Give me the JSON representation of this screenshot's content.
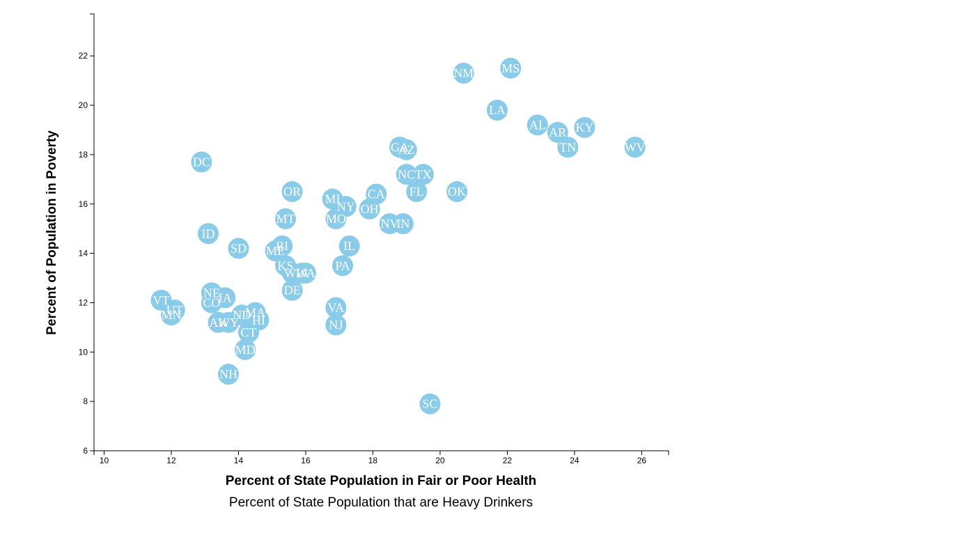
{
  "chart_data": {
    "type": "scatter",
    "x_axis": {
      "labels": [
        "Percent of State Population in Fair or Poor Health",
        "Percent of State Population that are Heavy Drinkers"
      ],
      "active": 0,
      "range": [
        9.7,
        26.8
      ],
      "ticks": [
        "10",
        "12",
        "14",
        "16",
        "18",
        "20",
        "22",
        "24",
        "26"
      ]
    },
    "y_axis": {
      "label": "Percent of Population in Poverty",
      "range": [
        6,
        23.7
      ],
      "ticks": [
        "6",
        "8",
        "10",
        "12",
        "14",
        "16",
        "18",
        "20",
        "22"
      ]
    },
    "marker_color": "#89cbe8",
    "label_color": "#ffffff",
    "points": [
      {
        "abbr": "NM",
        "x": 20.7,
        "y": 21.3
      },
      {
        "abbr": "MS",
        "x": 22.1,
        "y": 21.5
      },
      {
        "abbr": "LA",
        "x": 21.7,
        "y": 19.8
      },
      {
        "abbr": "AL",
        "x": 22.9,
        "y": 19.2
      },
      {
        "abbr": "AR",
        "x": 23.5,
        "y": 18.9
      },
      {
        "abbr": "KY",
        "x": 24.3,
        "y": 19.1
      },
      {
        "abbr": "TN",
        "x": 23.8,
        "y": 18.3
      },
      {
        "abbr": "WV",
        "x": 25.8,
        "y": 18.3
      },
      {
        "abbr": "GA",
        "x": 18.8,
        "y": 18.3
      },
      {
        "abbr": "AZ",
        "x": 19.0,
        "y": 18.2
      },
      {
        "abbr": "NC",
        "x": 19.0,
        "y": 17.2
      },
      {
        "abbr": "TX",
        "x": 19.5,
        "y": 17.2
      },
      {
        "abbr": "FL",
        "x": 19.3,
        "y": 16.5
      },
      {
        "abbr": "OK",
        "x": 20.5,
        "y": 16.5
      },
      {
        "abbr": "DC",
        "x": 12.9,
        "y": 17.7
      },
      {
        "abbr": "OR",
        "x": 15.6,
        "y": 16.5
      },
      {
        "abbr": "MI",
        "x": 16.8,
        "y": 16.2
      },
      {
        "abbr": "NY",
        "x": 17.2,
        "y": 15.9
      },
      {
        "abbr": "CA",
        "x": 18.1,
        "y": 16.4
      },
      {
        "abbr": "OH",
        "x": 17.9,
        "y": 15.8
      },
      {
        "abbr": "MT",
        "x": 15.4,
        "y": 15.4
      },
      {
        "abbr": "MO",
        "x": 16.9,
        "y": 15.4
      },
      {
        "abbr": "NV",
        "x": 18.5,
        "y": 15.2
      },
      {
        "abbr": "IN",
        "x": 18.9,
        "y": 15.2
      },
      {
        "abbr": "ID",
        "x": 13.1,
        "y": 14.8
      },
      {
        "abbr": "SD",
        "x": 14.0,
        "y": 14.2
      },
      {
        "abbr": "ME",
        "x": 15.1,
        "y": 14.1
      },
      {
        "abbr": "RI",
        "x": 15.3,
        "y": 14.3
      },
      {
        "abbr": "IL",
        "x": 17.3,
        "y": 14.3
      },
      {
        "abbr": "KS",
        "x": 15.4,
        "y": 13.5
      },
      {
        "abbr": "PA",
        "x": 17.1,
        "y": 13.5
      },
      {
        "abbr": "WI",
        "x": 15.6,
        "y": 13.2
      },
      {
        "abbr": "IA",
        "x": 15.9,
        "y": 13.2
      },
      {
        "abbr": "WA",
        "x": 16.0,
        "y": 13.2
      },
      {
        "abbr": "DE",
        "x": 15.6,
        "y": 12.5
      },
      {
        "abbr": "NE",
        "x": 13.2,
        "y": 12.4
      },
      {
        "abbr": "IA",
        "x": 13.6,
        "y": 12.2
      },
      {
        "abbr": "CO",
        "x": 13.2,
        "y": 12.0
      },
      {
        "abbr": "VT",
        "x": 11.7,
        "y": 12.1
      },
      {
        "abbr": "UT",
        "x": 12.1,
        "y": 11.7
      },
      {
        "abbr": "MN",
        "x": 12.0,
        "y": 11.5
      },
      {
        "abbr": "ND",
        "x": 14.1,
        "y": 11.5
      },
      {
        "abbr": "MA",
        "x": 14.5,
        "y": 11.6
      },
      {
        "abbr": "HI",
        "x": 14.6,
        "y": 11.3
      },
      {
        "abbr": "AK",
        "x": 13.4,
        "y": 11.2
      },
      {
        "abbr": "WY",
        "x": 13.7,
        "y": 11.2
      },
      {
        "abbr": "CT",
        "x": 14.3,
        "y": 10.8
      },
      {
        "abbr": "MD",
        "x": 14.2,
        "y": 10.1
      },
      {
        "abbr": "VA",
        "x": 16.9,
        "y": 11.8
      },
      {
        "abbr": "NJ",
        "x": 16.9,
        "y": 11.1
      },
      {
        "abbr": "NH",
        "x": 13.7,
        "y": 9.1
      },
      {
        "abbr": "SC",
        "x": 19.7,
        "y": 7.9
      }
    ]
  }
}
